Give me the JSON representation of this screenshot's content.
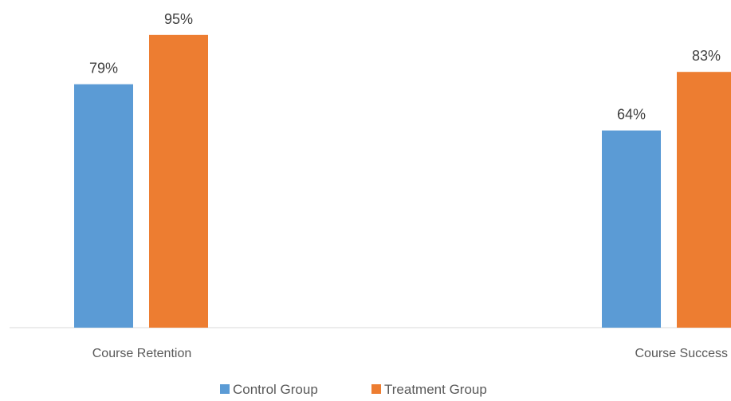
{
  "chart_data": {
    "type": "bar",
    "title": "",
    "xlabel": "",
    "ylabel": "",
    "categories": [
      "Course Retention",
      "Course Success"
    ],
    "series": [
      {
        "name": "Control Group",
        "values": [
          79,
          64
        ],
        "labels": [
          "79%",
          "64%"
        ],
        "color": "#5B9BD5"
      },
      {
        "name": "Treatment Group",
        "values": [
          95,
          83
        ],
        "labels": [
          "95%",
          "83%"
        ],
        "color": "#ED7D31"
      }
    ],
    "ylim": [
      0,
      100
    ],
    "value_format": "percent",
    "grid": false,
    "legend_position": "bottom",
    "axis_color": "#D9D9D9"
  }
}
